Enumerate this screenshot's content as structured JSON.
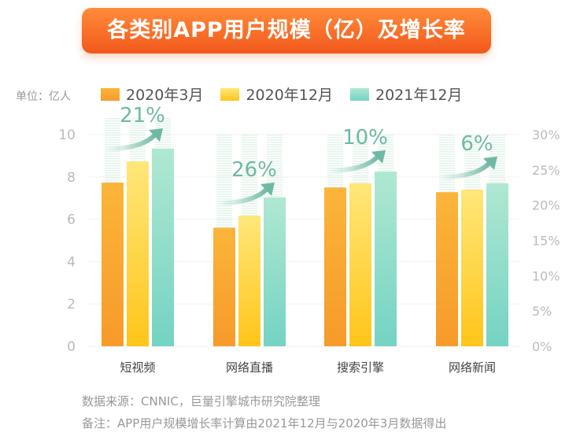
{
  "title": "各类别APP用户规模（亿）及增长率",
  "unit_label": "单位：亿人",
  "notes": [
    "数据来源：CNNIC，巨量引擎城市研究院整理",
    "备注：APP用户规模增长率计算由2021年12月与2020年3月数据得出"
  ],
  "chart_data": {
    "type": "bar",
    "title": "各类别APP用户规模（亿）及增长率",
    "categories": [
      "短视频",
      "网络直播",
      "搜索引擎",
      "网络新闻"
    ],
    "series": [
      {
        "name": "2020年3月",
        "values": [
          7.73,
          5.6,
          7.5,
          7.28
        ],
        "color": "#f9a02a"
      },
      {
        "name": "2020年12月",
        "values": [
          8.73,
          6.17,
          7.7,
          7.4
        ],
        "color": "#ffd02e"
      },
      {
        "name": "2021年12月",
        "values": [
          9.34,
          7.03,
          8.25,
          7.7
        ],
        "color": "#86dcc6"
      }
    ],
    "growth_rate": {
      "labels": [
        "21%",
        "26%",
        "10%",
        "6%"
      ],
      "values": [
        21,
        26,
        10,
        6
      ]
    },
    "ylim": [
      0,
      10
    ],
    "yticks": [
      "0",
      "2",
      "4",
      "6",
      "8",
      "10"
    ],
    "y2lim": [
      0,
      30
    ],
    "y2ticks": [
      "0%",
      "5%",
      "10%",
      "15%",
      "20%",
      "25%",
      "30%"
    ],
    "grid": true,
    "legend": "top"
  }
}
